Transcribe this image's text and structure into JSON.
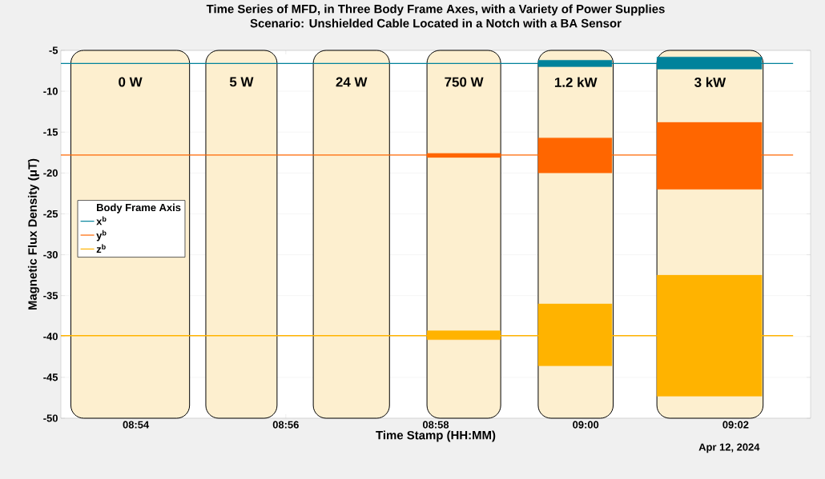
{
  "chart_data": {
    "type": "line",
    "title": "Time Series of MFD, in Three Body Frame Axes, with a Variety of Power Supplies",
    "subtitle": "Scenario: Unshielded Cable Located in a Notch with a BA Sensor",
    "xlabel": "Time Stamp (HH:MM)",
    "ylabel": "Magnetic Flux Density (μT)",
    "legend_title": "Body Frame Axis",
    "annotations": [
      "Apr 12, 2024"
    ],
    "xlim": [
      "2024-04-12T08:53:00",
      "2024-04-12T09:03:00"
    ],
    "xticks": [
      {
        "value": "2024-04-12T08:54",
        "label": "08:54"
      },
      {
        "value": "2024-04-12T08:56",
        "label": "08:56"
      },
      {
        "value": "2024-04-12T08:58",
        "label": "08:58"
      },
      {
        "value": "2024-04-12T09:00",
        "label": "09:00"
      },
      {
        "value": "2024-04-12T09:02",
        "label": "09:02"
      }
    ],
    "ylim": [
      -50,
      -5
    ],
    "yticks": [
      -50,
      -45,
      -40,
      -35,
      -30,
      -25,
      -20,
      -15,
      -10,
      -5
    ],
    "grid": "y",
    "legend": "left",
    "x": [
      "2024-04-12T08:53:00",
      "2024-04-12T08:55:00",
      "2024-04-12T08:57:53",
      "2024-04-12T08:58:52",
      "2024-04-12T08:59:05",
      "2024-04-12T08:59:22",
      "2024-04-12T09:00:21",
      "2024-04-12T09:00:40",
      "2024-04-12T09:00:57",
      "2024-04-12T09:02:21",
      "2024-04-12T09:02:46"
    ],
    "series": [
      {
        "name": "x$^{b}$",
        "color": "#00829b",
        "values": [
          -6.6,
          -6.6,
          -6.6,
          -6.6,
          -6.6,
          -6.6,
          -6.6,
          -6.6,
          -6.6,
          -6.6,
          -6.6
        ],
        "lower": [
          null,
          null,
          null,
          null,
          null,
          -7.0,
          -7.0,
          null,
          -7.3,
          -7.3,
          null
        ],
        "upper": [
          null,
          null,
          null,
          null,
          null,
          -6.2,
          -6.2,
          null,
          -5.8,
          -5.8,
          null
        ]
      },
      {
        "name": "y$^{b}$",
        "color": "#ff6600",
        "values": [
          -17.8,
          -17.8,
          -17.8,
          -17.8,
          -17.8,
          -17.8,
          -17.8,
          -17.8,
          -17.8,
          -17.8,
          -17.8
        ],
        "lower": [
          null,
          null,
          -18.1,
          -18.1,
          null,
          -20.0,
          -20.0,
          null,
          -22.0,
          -22.0,
          null
        ],
        "upper": [
          null,
          null,
          -17.6,
          -17.6,
          null,
          -15.7,
          -15.7,
          null,
          -13.8,
          -13.8,
          null
        ]
      },
      {
        "name": "z$^{b}$",
        "color": "#ffb300",
        "values": [
          -39.9,
          -39.9,
          -39.9,
          -39.9,
          -39.9,
          -39.9,
          -39.9,
          -39.9,
          -39.9,
          -39.9,
          -39.9
        ],
        "lower": [
          null,
          null,
          -40.4,
          -40.4,
          null,
          -43.6,
          -43.6,
          null,
          -47.3,
          -47.3,
          null
        ],
        "upper": [
          null,
          null,
          -39.3,
          -39.3,
          null,
          -36.0,
          -36.0,
          null,
          -32.5,
          -32.5,
          null
        ]
      }
    ],
    "bands": [
      {
        "axis": "x",
        "from": "2024-04-12T08:53:08",
        "to": "2024-04-12T08:54:43",
        "label": "0 W",
        "color": "#fdefcf"
      },
      {
        "axis": "x",
        "from": "2024-04-12T08:54:56",
        "to": "2024-04-12T08:55:53",
        "label": "5 W",
        "color": "#fdefcf"
      },
      {
        "axis": "x",
        "from": "2024-04-12T08:56:22",
        "to": "2024-04-12T08:57:23",
        "label": "24 W",
        "color": "#fdefcf"
      },
      {
        "axis": "x",
        "from": "2024-04-12T08:57:53",
        "to": "2024-04-12T08:58:52",
        "label": "750 W",
        "color": "#fdefcf"
      },
      {
        "axis": "x",
        "from": "2024-04-12T08:59:22",
        "to": "2024-04-12T09:00:22",
        "label": "1.2 kW",
        "color": "#fdefcf"
      },
      {
        "axis": "x",
        "from": "2024-04-12T09:00:57",
        "to": "2024-04-12T09:02:22",
        "label": "3 kW",
        "color": "#fdefcf"
      }
    ]
  }
}
